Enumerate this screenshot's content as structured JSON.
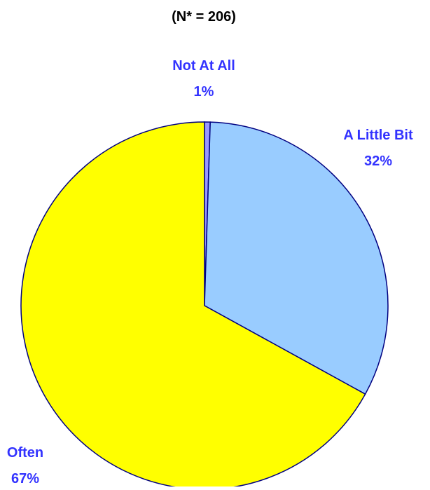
{
  "chart_data": {
    "type": "pie",
    "title": "(N* = 206)",
    "slices": [
      {
        "label": "Not At All",
        "value_label": "1%",
        "value": 0.5,
        "color": "#9999ff"
      },
      {
        "label": "A Little Bit",
        "value_label": "32%",
        "value": 32.5,
        "color": "#99ccff"
      },
      {
        "label": "Often",
        "value_label": "67%",
        "value": 67,
        "color": "#ffff00"
      }
    ],
    "stroke_color": "#000080",
    "label_color": "#3333ff"
  }
}
